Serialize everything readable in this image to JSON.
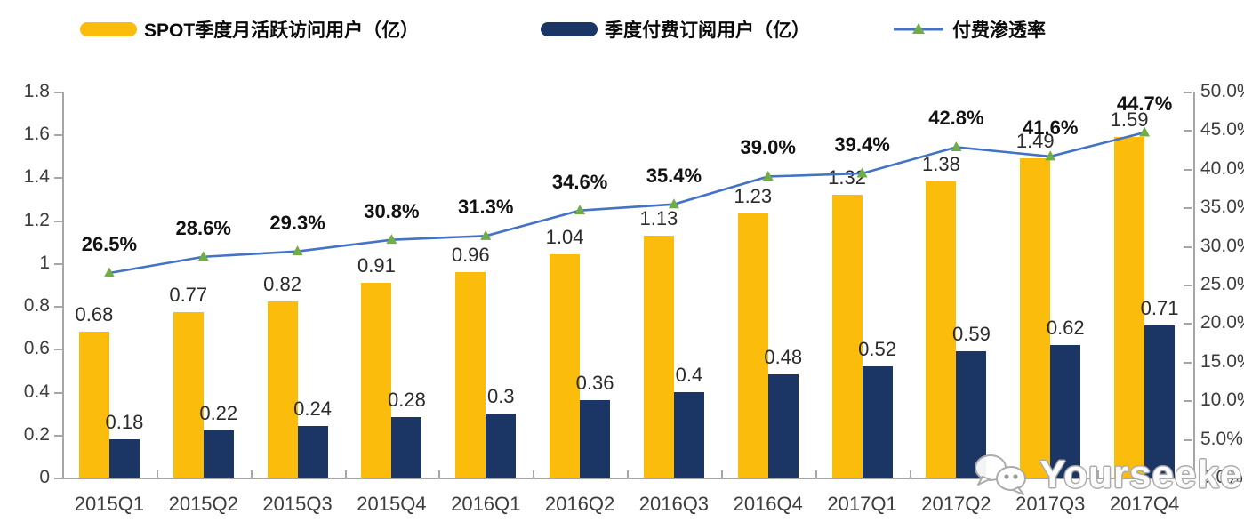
{
  "chart_data": {
    "type": "bar",
    "title": "",
    "categories": [
      "2015Q1",
      "2015Q2",
      "2015Q3",
      "2015Q4",
      "2016Q1",
      "2016Q2",
      "2016Q3",
      "2016Q4",
      "2017Q1",
      "2017Q2",
      "2017Q3",
      "2017Q4"
    ],
    "series": [
      {
        "name": "SPOT季度月活跃访问用户（亿）",
        "type": "bar",
        "color": "#FBBC0C",
        "axis": "left",
        "values": [
          0.68,
          0.77,
          0.82,
          0.91,
          0.96,
          1.04,
          1.13,
          1.23,
          1.32,
          1.38,
          1.49,
          1.59
        ],
        "labels": [
          "0.68",
          "0.77",
          "0.82",
          "0.91",
          "0.96",
          "1.04",
          "1.13",
          "1.23",
          "1.32",
          "1.38",
          "1.49",
          "1.59"
        ]
      },
      {
        "name": "季度付费订阅用户（亿）",
        "type": "bar",
        "color": "#1B3665",
        "axis": "left",
        "values": [
          0.18,
          0.22,
          0.24,
          0.28,
          0.3,
          0.36,
          0.4,
          0.48,
          0.52,
          0.59,
          0.62,
          0.71
        ],
        "labels": [
          "0.18",
          "0.22",
          "0.24",
          "0.28",
          "0.3",
          "0.36",
          "0.4",
          "0.48",
          "0.52",
          "0.59",
          "0.62",
          "0.71"
        ]
      },
      {
        "name": "付费渗透率",
        "type": "line",
        "color": "#4472C4",
        "marker": "triangle",
        "marker_color": "#70AD47",
        "axis": "right",
        "values": [
          26.5,
          28.6,
          29.3,
          30.8,
          31.3,
          34.6,
          35.4,
          39.0,
          39.4,
          42.8,
          41.6,
          44.7
        ],
        "labels": [
          "26.5%",
          "28.6%",
          "29.3%",
          "30.8%",
          "31.3%",
          "34.6%",
          "35.4%",
          "39.0%",
          "39.4%",
          "42.8%",
          "41.6%",
          "44.7%"
        ]
      }
    ],
    "left_axis": {
      "min": 0,
      "max": 1.8,
      "ticks": [
        "1.8",
        "1.6",
        "1.4",
        "1.2",
        "1",
        "0.8",
        "0.6",
        "0.4",
        "0.2",
        "0"
      ]
    },
    "right_axis": {
      "min": 0,
      "max": 50,
      "ticks": [
        "50.0%",
        "45.0%",
        "40.0%",
        "35.0%",
        "30.0%",
        "25.0%",
        "20.0%",
        "15.0%",
        "10.0%",
        "5.0%",
        "0.0%"
      ]
    },
    "grid": false,
    "legend_position": "top",
    "axis_color": "#A6A6A6"
  },
  "watermark": {
    "text": "Yourseeker",
    "icon": "wechat-bubbles-icon"
  }
}
